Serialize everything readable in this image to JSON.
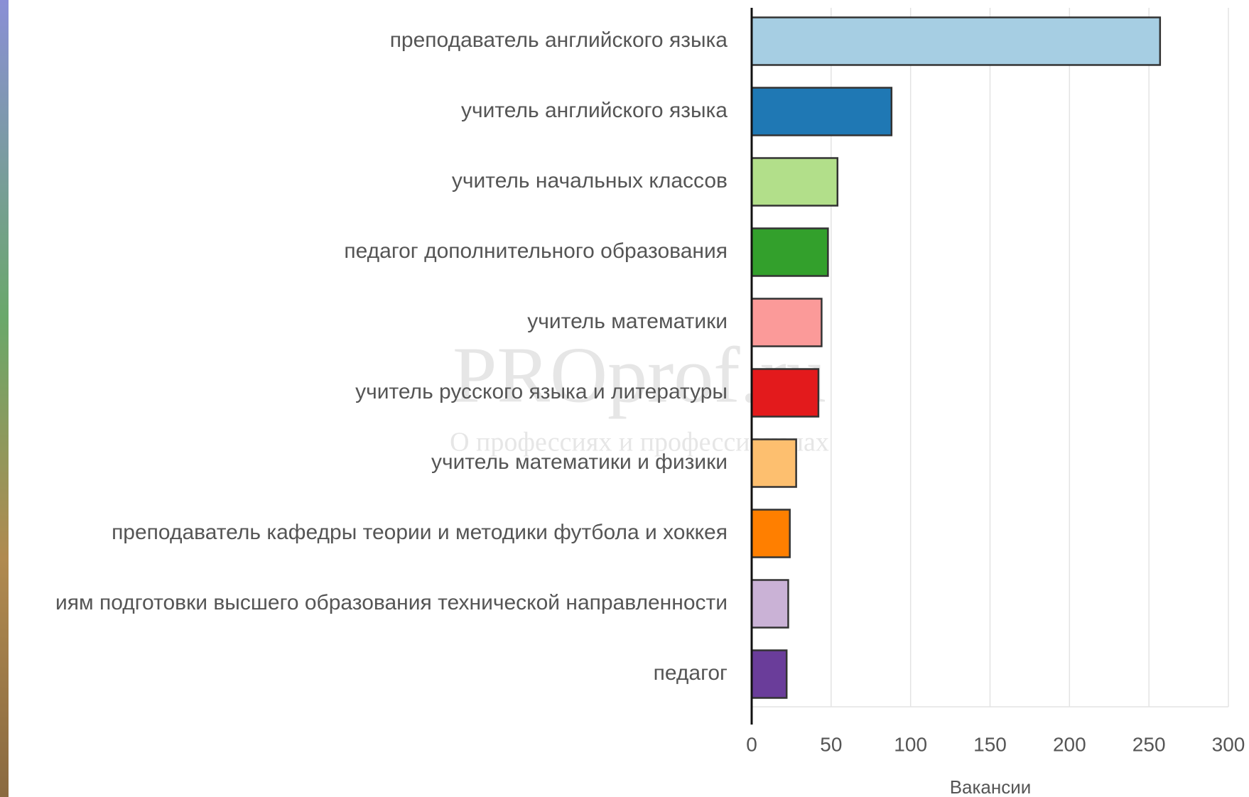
{
  "chart_data": {
    "type": "hbar",
    "categories": [
      "преподаватель английского языка",
      "учитель английского языка",
      "учитель начальных классов",
      "педагог дополнительного образования",
      "учитель математики",
      "учитель русского языка и литературы",
      "учитель математики и физики",
      "преподаватель кафедры теории и методики футбола и хоккея",
      "иям подготовки высшего образования технической направленности",
      "педагог"
    ],
    "values": [
      257,
      88,
      54,
      48,
      44,
      42,
      28,
      24,
      23,
      22
    ],
    "colors": [
      "#a6cee3",
      "#1f78b4",
      "#b2df8a",
      "#33a02c",
      "#fb9a99",
      "#e31a1c",
      "#fdbf6f",
      "#ff7f00",
      "#cab2d6",
      "#6a3d9a"
    ],
    "xlabel": "Вакансии",
    "xlim": [
      0,
      300
    ],
    "xticks": [
      0,
      50,
      100,
      150,
      200,
      250,
      300
    ],
    "grid": true
  },
  "watermark": {
    "title": "PROprof.ru",
    "subtitle": "О профессиях и профессионалах"
  }
}
